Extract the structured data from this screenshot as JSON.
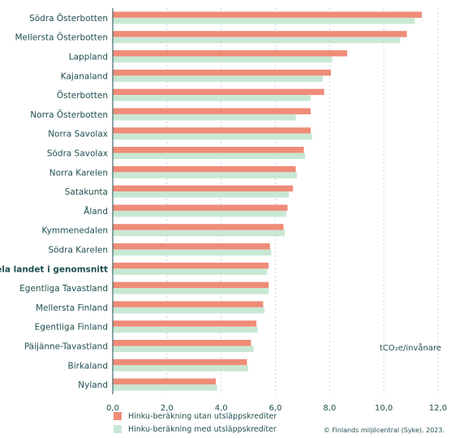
{
  "chart_data": {
    "type": "bar",
    "orientation": "horizontal",
    "categories": [
      "Södra Österbotten",
      "Mellersta Österbotten",
      "Lappland",
      "Kajanaland",
      "Österbotten",
      "Norra Österbotten",
      "Norra Savolax",
      "Södra Savolax",
      "Norra Karelen",
      "Satakunta",
      "Åland",
      "Kymmenedalen",
      "Södra Karelen",
      "Hela landet i genomsnitt",
      "Egentliga Tavastland",
      "Mellersta Finland",
      "Egentliga Finland",
      "Päijänne-Tavastland",
      "Birkaland",
      "Nyland"
    ],
    "highlight_category": "Hela landet i genomsnitt",
    "series": [
      {
        "name": "Hinku-beräkning utan utsläppskrediter",
        "color": "#ef8c78",
        "values": [
          11.4,
          10.85,
          8.65,
          8.05,
          7.8,
          7.3,
          7.3,
          7.05,
          6.75,
          6.65,
          6.45,
          6.3,
          5.8,
          5.75,
          5.75,
          5.55,
          5.3,
          5.1,
          4.95,
          3.8
        ]
      },
      {
        "name": "Hinku-beräkning med utsläppskrediter",
        "color": "#c8e8d4",
        "values": [
          11.15,
          10.6,
          8.1,
          7.75,
          7.3,
          6.75,
          7.35,
          7.1,
          6.8,
          6.5,
          6.4,
          6.35,
          5.85,
          5.7,
          5.75,
          5.6,
          5.35,
          5.2,
          5.0,
          3.85
        ]
      }
    ],
    "xlim": [
      0,
      12
    ],
    "xticks": [
      "0,0",
      "2,0",
      "4,0",
      "6,0",
      "8,0",
      "10,0",
      "12,0"
    ],
    "xlabel": "tCO₂e/invånare",
    "grid": "vertical dashed"
  },
  "credit": "© Finlands miljöcentral (Syke). 2023."
}
